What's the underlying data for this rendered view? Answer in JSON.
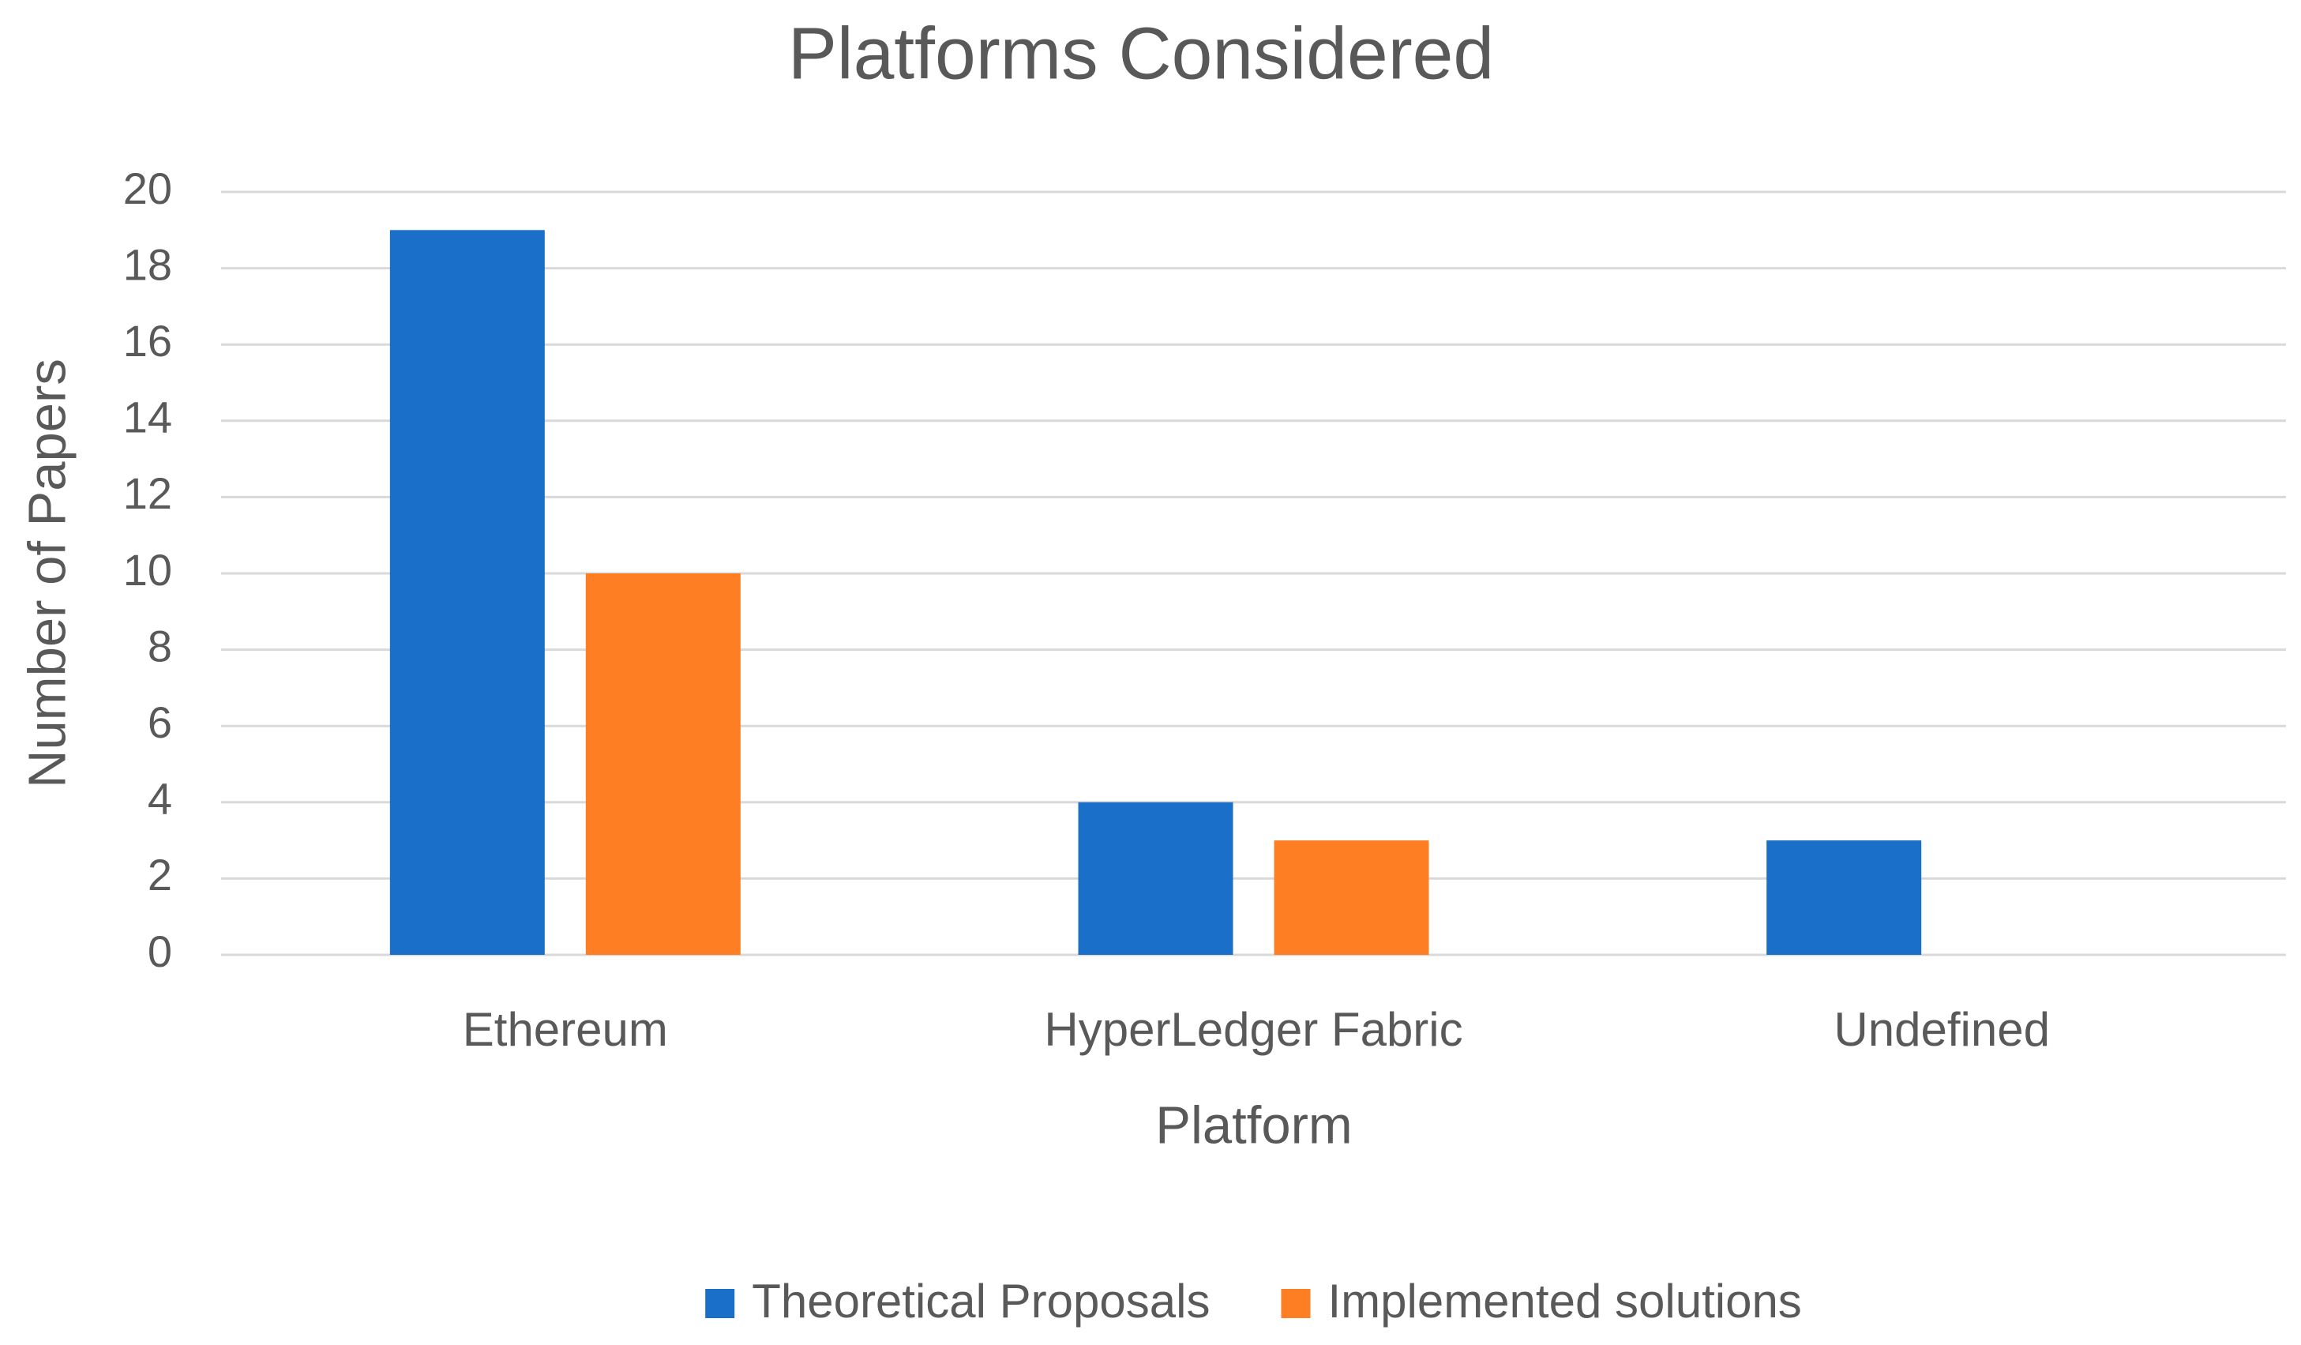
{
  "chart_data": {
    "type": "bar",
    "title": "Platforms Considered",
    "x_label": "Platform",
    "y_label": "Number of Papers",
    "categories": [
      "Ethereum",
      "HyperLedger Fabric",
      "Undefined"
    ],
    "series": [
      {
        "name": "Theoretical Proposals",
        "color": "#1a70c8",
        "values": [
          19,
          4,
          3
        ]
      },
      {
        "name": "Implemented solutions",
        "color": "#fe7f23",
        "values": [
          10,
          3,
          0
        ]
      }
    ],
    "ylim": [
      0,
      20
    ],
    "yticks": [
      0,
      2,
      4,
      6,
      8,
      10,
      12,
      14,
      16,
      18,
      20
    ],
    "grid": true,
    "legend": "bottom"
  }
}
